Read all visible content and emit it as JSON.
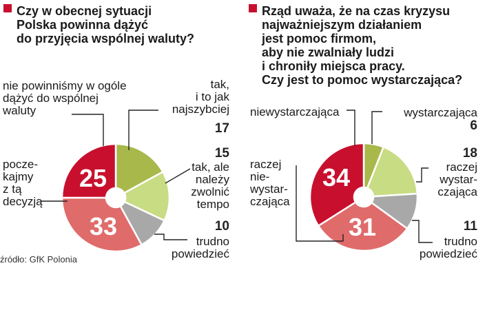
{
  "source": "źródło: GfK Polonia",
  "colors": {
    "dark_red": "#c8102e",
    "salmon": "#e06b6b",
    "olive": "#a8b84a",
    "light_green": "#c8dc84",
    "gray": "#a8a8a8",
    "bullet_red": "#c8102e",
    "leader": "#222222"
  },
  "chart_data": [
    {
      "type": "pie",
      "title_lines": [
        "Czy w obecnej sytuacji",
        "Polska powinna dążyć",
        "do przyjęcia wspólnej waluty?"
      ],
      "slices": [
        {
          "label_lines": [
            "tak,",
            "i to jak",
            "najszybciej"
          ],
          "value": 17,
          "color": "olive"
        },
        {
          "label_lines": [
            "tak, ale",
            "należy",
            "zwolnić",
            "tempo"
          ],
          "value": 15,
          "color": "light_green"
        },
        {
          "label_lines": [
            "trudno",
            "powiedzieć"
          ],
          "value": 10,
          "color": "gray"
        },
        {
          "label_lines": [
            "pocze-",
            "kajmy",
            "z tą",
            "decyzją"
          ],
          "value": 33,
          "color": "salmon"
        },
        {
          "label_lines": [
            "nie powinniśmy w ogóle",
            "dążyć do wspólnej",
            "waluty"
          ],
          "value": 25,
          "color": "dark_red"
        }
      ]
    },
    {
      "type": "pie",
      "title_lines": [
        "Rząd uważa, że na czas kryzysu",
        "najważniejszym działaniem",
        "jest pomoc firmom,",
        "aby nie zwalniały ludzi",
        "i chroniły miejsca pracy.",
        "Czy jest to pomoc wystarczająca?"
      ],
      "slices": [
        {
          "label_lines": [
            "wystarczająca"
          ],
          "value": 6,
          "color": "olive"
        },
        {
          "label_lines": [
            "raczej",
            "wystar-",
            "czająca"
          ],
          "value": 18,
          "color": "light_green"
        },
        {
          "label_lines": [
            "trudno",
            "powiedzieć"
          ],
          "value": 11,
          "color": "gray"
        },
        {
          "label_lines": [
            "raczej",
            "nie-",
            "wystar-",
            "czająca"
          ],
          "value": 31,
          "color": "salmon"
        },
        {
          "label_lines": [
            "niewystarczająca"
          ],
          "value": 34,
          "color": "dark_red"
        }
      ]
    }
  ]
}
